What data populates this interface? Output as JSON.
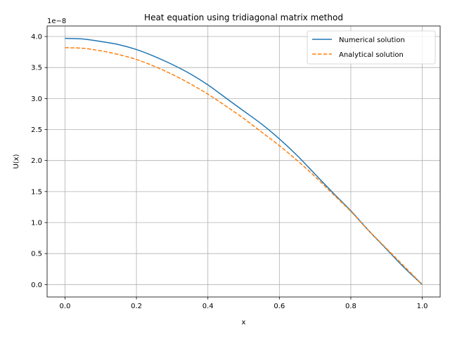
{
  "chart_data": {
    "type": "line",
    "title": "Heat equation using tridiagonal matrix method",
    "xlabel": "x",
    "ylabel": "U(x)",
    "y_offset_label": "1e−8",
    "xlim": [
      -0.05,
      1.05
    ],
    "ylim": [
      -0.2,
      4.17
    ],
    "x_ticks": [
      0.0,
      0.2,
      0.4,
      0.6,
      0.8,
      1.0
    ],
    "x_tick_labels": [
      "0.0",
      "0.2",
      "0.4",
      "0.6",
      "0.8",
      "1.0"
    ],
    "y_ticks": [
      0.0,
      0.5,
      1.0,
      1.5,
      2.0,
      2.5,
      3.0,
      3.5,
      4.0
    ],
    "y_tick_labels": [
      "0.0",
      "0.5",
      "1.0",
      "1.5",
      "2.0",
      "2.5",
      "3.0",
      "3.5",
      "4.0"
    ],
    "grid": true,
    "legend_position": "top-right",
    "series": [
      {
        "name": "Numerical solution",
        "color": "#1f77b4",
        "style": "solid",
        "x": [
          0.0,
          0.05,
          0.1,
          0.15,
          0.2,
          0.25,
          0.3,
          0.35,
          0.4,
          0.45,
          0.5,
          0.55,
          0.6,
          0.65,
          0.7,
          0.75,
          0.8,
          0.85,
          0.9,
          0.95,
          1.0
        ],
        "y": [
          3.97,
          3.96,
          3.92,
          3.87,
          3.79,
          3.68,
          3.55,
          3.4,
          3.22,
          3.01,
          2.8,
          2.59,
          2.35,
          2.08,
          1.78,
          1.48,
          1.19,
          0.87,
          0.57,
          0.27,
          0.0
        ]
      },
      {
        "name": "Analytical solution",
        "color": "#ff7f0e",
        "style": "dashed",
        "x": [
          0.0,
          0.05,
          0.1,
          0.15,
          0.2,
          0.25,
          0.3,
          0.35,
          0.4,
          0.45,
          0.5,
          0.55,
          0.6,
          0.65,
          0.7,
          0.75,
          0.8,
          0.85,
          0.9,
          0.95,
          1.0
        ],
        "y": [
          3.82,
          3.81,
          3.77,
          3.71,
          3.63,
          3.52,
          3.39,
          3.24,
          3.07,
          2.88,
          2.68,
          2.46,
          2.24,
          2.0,
          1.74,
          1.46,
          1.18,
          0.87,
          0.58,
          0.29,
          0.0
        ]
      }
    ]
  }
}
